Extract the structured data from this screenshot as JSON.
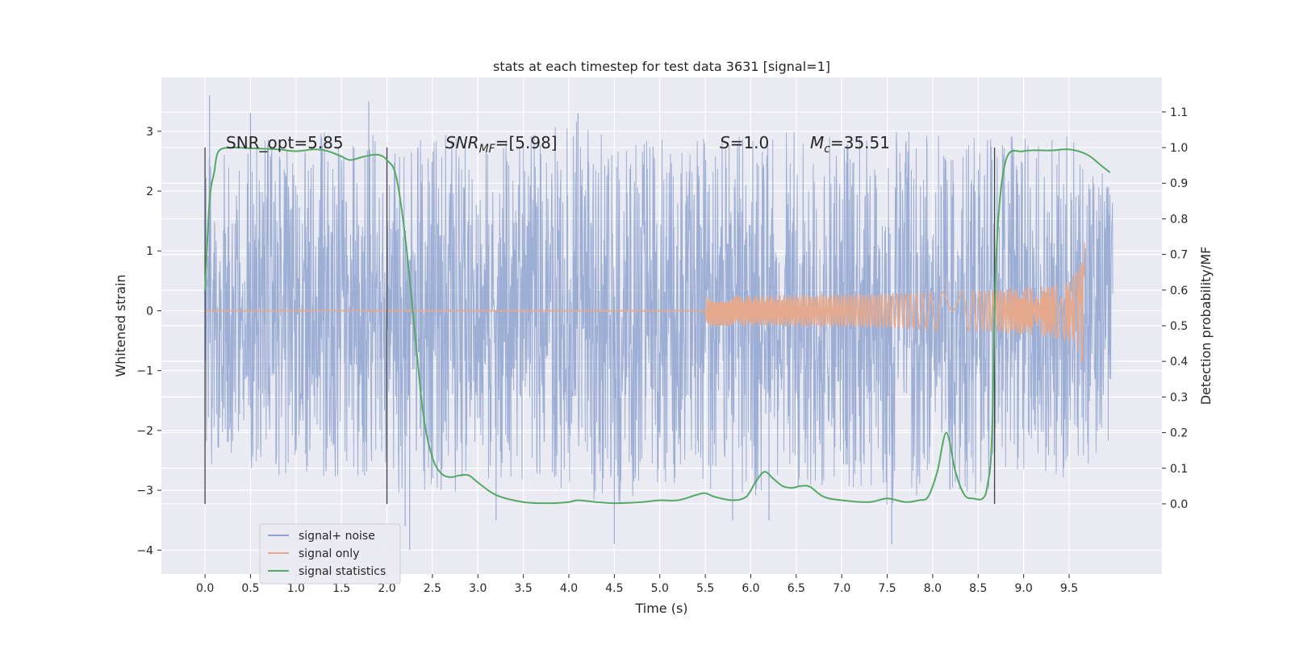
{
  "chart_data": {
    "type": "line",
    "title": "stats at each timestep for test data 3631 [signal=1]",
    "xlabel": "Time (s)",
    "ylabel": "Whitened strain",
    "y2label": "Detection probability/MF",
    "xlim": [
      -0.48,
      10.52
    ],
    "ylim": [
      -4.4,
      3.9
    ],
    "y2lim": [
      -0.197,
      1.197
    ],
    "x_ticks": [
      0.0,
      0.5,
      1.0,
      1.5,
      2.0,
      2.5,
      3.0,
      3.5,
      4.0,
      4.5,
      5.0,
      5.5,
      6.0,
      6.5,
      7.0,
      7.5,
      8.0,
      8.5,
      9.0,
      9.5
    ],
    "x_tick_labels": [
      "0.0",
      "0.5",
      "1.0",
      "1.5",
      "2.0",
      "2.5",
      "3.0",
      "3.5",
      "4.0",
      "4.5",
      "5.0",
      "5.5",
      "6.0",
      "6.5",
      "7.0",
      "7.5",
      "8.0",
      "8.5",
      "9.0",
      "9.5"
    ],
    "y_ticks": [
      -4,
      -3,
      -2,
      -1,
      0,
      1,
      2,
      3
    ],
    "y_tick_labels": [
      "−4",
      "−3",
      "−2",
      "−1",
      "0",
      "1",
      "2",
      "3"
    ],
    "y2_ticks": [
      0.0,
      0.1,
      0.2,
      0.3,
      0.4,
      0.5,
      0.6,
      0.7,
      0.8,
      0.9,
      1.0,
      1.1
    ],
    "y2_tick_labels": [
      "0.0",
      "0.1",
      "0.2",
      "0.3",
      "0.4",
      "0.5",
      "0.6",
      "0.7",
      "0.8",
      "0.9",
      "1.0",
      "1.1"
    ],
    "grid": true,
    "legend_placement": "lower-left",
    "vertical_markers_x": [
      0.0,
      2.0,
      8.68
    ],
    "series": [
      {
        "name": "signal+ noise",
        "color": "#8fa3d0",
        "axis": "left",
        "x_range": [
          0.0,
          9.98
        ],
        "envelope": [
          [
            0.0,
            2.6,
            -2.6
          ],
          [
            0.5,
            2.9,
            -2.7
          ],
          [
            1.0,
            3.0,
            -2.8
          ],
          [
            1.5,
            3.0,
            -2.9
          ],
          [
            2.0,
            3.0,
            -3.0
          ],
          [
            2.5,
            3.0,
            -3.2
          ],
          [
            3.0,
            2.8,
            -2.9
          ],
          [
            3.5,
            2.9,
            -2.9
          ],
          [
            4.0,
            3.2,
            -3.0
          ],
          [
            4.5,
            3.0,
            -3.3
          ],
          [
            5.0,
            3.0,
            -2.9
          ],
          [
            5.5,
            3.0,
            -3.1
          ],
          [
            6.0,
            2.9,
            -3.1
          ],
          [
            6.5,
            3.0,
            -3.0
          ],
          [
            7.0,
            2.9,
            -2.9
          ],
          [
            7.5,
            3.0,
            -3.3
          ],
          [
            8.0,
            3.0,
            -3.0
          ],
          [
            8.5,
            3.1,
            -3.1
          ],
          [
            9.0,
            2.9,
            -2.7
          ],
          [
            9.5,
            3.0,
            -2.8
          ],
          [
            9.98,
            2.1,
            -2.7
          ]
        ],
        "spikes": [
          [
            0.05,
            3.6
          ],
          [
            0.5,
            3.3
          ],
          [
            1.8,
            3.5
          ],
          [
            2.25,
            -4.0
          ],
          [
            4.1,
            3.3
          ],
          [
            4.5,
            -3.9
          ],
          [
            6.2,
            -3.5
          ],
          [
            7.55,
            -3.9
          ],
          [
            2.2,
            -3.6
          ],
          [
            3.2,
            -3.5
          ],
          [
            5.8,
            -3.5
          ]
        ]
      },
      {
        "name": "signal only",
        "color": "#e5a98d",
        "axis": "left",
        "start": 0.0,
        "end": 9.67,
        "peak_amplitude": 1.4
      },
      {
        "name": "signal statistics",
        "color": "#55a868",
        "axis": "right",
        "x": [
          0.0,
          0.05,
          0.1,
          0.15,
          0.3,
          0.5,
          0.8,
          1.0,
          1.2,
          1.35,
          1.5,
          1.6,
          1.75,
          1.9,
          2.0,
          2.1,
          2.2,
          2.3,
          2.4,
          2.5,
          2.6,
          2.7,
          2.8,
          2.9,
          3.0,
          3.2,
          3.5,
          3.8,
          4.0,
          4.1,
          4.3,
          4.5,
          4.8,
          5.0,
          5.2,
          5.4,
          5.5,
          5.6,
          5.8,
          5.95,
          6.05,
          6.15,
          6.25,
          6.35,
          6.45,
          6.55,
          6.65,
          6.8,
          7.0,
          7.3,
          7.5,
          7.7,
          7.85,
          7.95,
          8.05,
          8.15,
          8.25,
          8.35,
          8.45,
          8.55,
          8.6,
          8.65,
          8.7,
          8.8,
          9.0,
          9.3,
          9.5,
          9.7,
          9.85,
          9.95
        ],
        "y": [
          0.6,
          0.85,
          0.93,
          0.99,
          1.0,
          0.998,
          0.995,
          0.99,
          0.995,
          0.99,
          0.975,
          0.965,
          0.975,
          0.98,
          0.965,
          0.92,
          0.75,
          0.5,
          0.25,
          0.13,
          0.085,
          0.075,
          0.08,
          0.08,
          0.06,
          0.025,
          0.005,
          0.002,
          0.005,
          0.01,
          0.005,
          0.002,
          0.005,
          0.01,
          0.01,
          0.025,
          0.03,
          0.02,
          0.01,
          0.02,
          0.06,
          0.09,
          0.07,
          0.05,
          0.045,
          0.05,
          0.048,
          0.02,
          0.01,
          0.005,
          0.015,
          0.005,
          0.01,
          0.02,
          0.09,
          0.2,
          0.09,
          0.025,
          0.015,
          0.015,
          0.05,
          0.18,
          0.7,
          0.96,
          0.99,
          0.992,
          0.995,
          0.98,
          0.95,
          0.93
        ]
      }
    ],
    "annotations": [
      {
        "text": "SNR_opt=5.85",
        "x": 0.2,
        "y": 2.85
      },
      {
        "text_parts": [
          "SNR",
          "MF",
          "=[5.98]"
        ],
        "x": 2.6,
        "y": 2.85
      },
      {
        "text_parts": [
          "S",
          "=1.0"
        ],
        "x": 5.6,
        "y": 2.85
      },
      {
        "text_parts": [
          "M",
          "c",
          "=35.51"
        ],
        "x": 6.6,
        "y": 2.85
      }
    ]
  }
}
